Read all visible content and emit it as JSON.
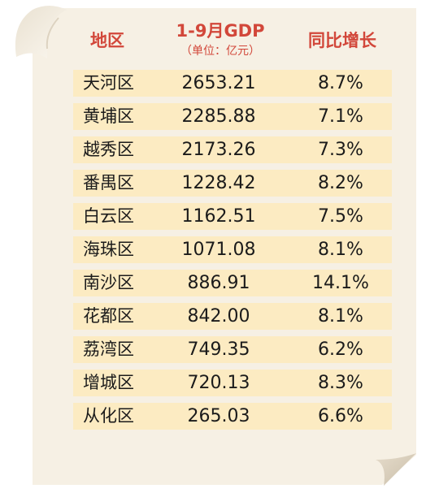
{
  "header": {
    "district": "地区",
    "gdp": "1-9月GDP",
    "unit": "（单位：亿元）",
    "growth": "同比增长"
  },
  "rows": [
    {
      "district": "天河区",
      "gdp": "2653.21",
      "growth": "8.7%"
    },
    {
      "district": "黄埔区",
      "gdp": "2285.88",
      "growth": "7.1%"
    },
    {
      "district": "越秀区",
      "gdp": "2173.26",
      "growth": "7.3%"
    },
    {
      "district": "番禺区",
      "gdp": "1228.42",
      "growth": "8.2%"
    },
    {
      "district": "白云区",
      "gdp": "1162.51",
      "growth": "7.5%"
    },
    {
      "district": "海珠区",
      "gdp": "1071.08",
      "growth": "8.1%"
    },
    {
      "district": "南沙区",
      "gdp": "886.91",
      "growth": "14.1%"
    },
    {
      "district": "花都区",
      "gdp": "842.00",
      "growth": "8.1%"
    },
    {
      "district": "荔湾区",
      "gdp": "749.35",
      "growth": "6.2%"
    },
    {
      "district": "增城区",
      "gdp": "720.13",
      "growth": "8.3%"
    },
    {
      "district": "从化区",
      "gdp": "265.03",
      "growth": "6.6%"
    }
  ],
  "colors": {
    "header_text": "#d2473a",
    "row_background": "#fcebc2",
    "paper": "#f6f0e4",
    "curl_shadow": "#d9cfbd"
  }
}
